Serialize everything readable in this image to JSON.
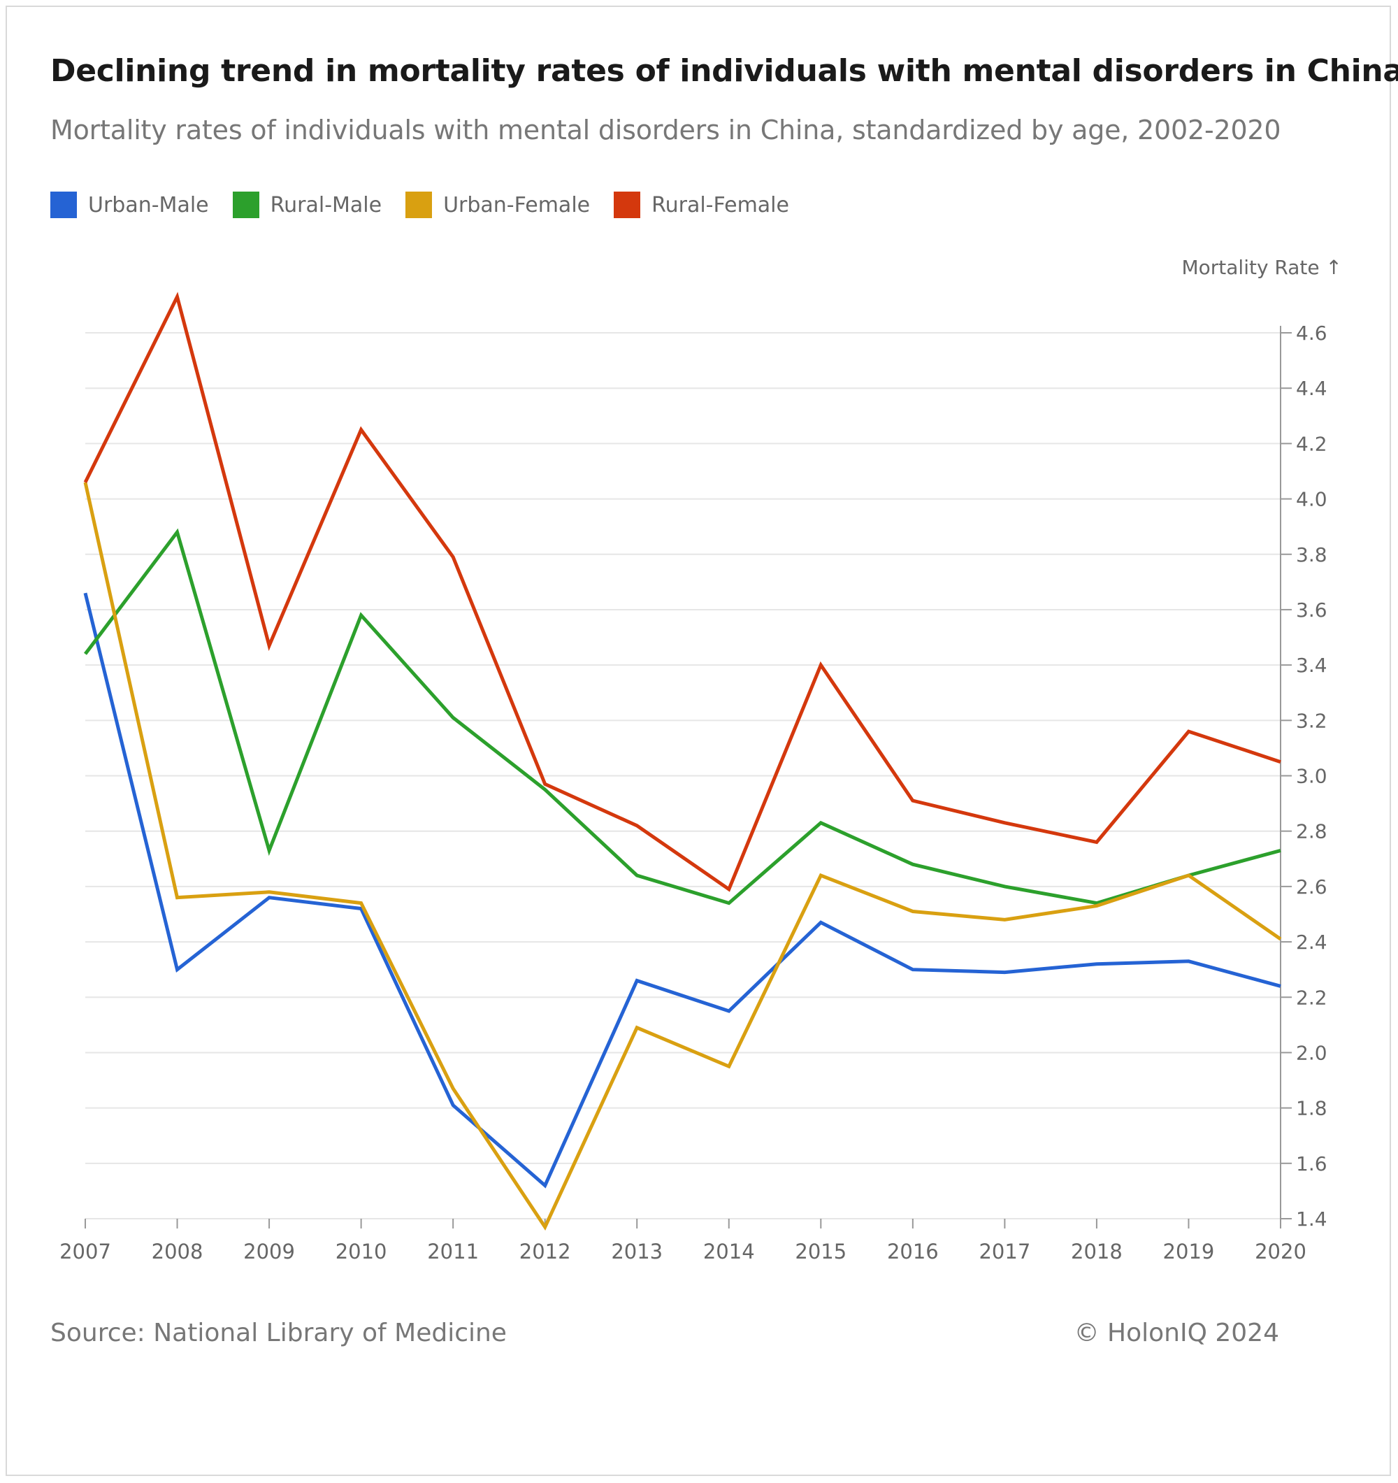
{
  "title": "Declining trend in mortality rates of individuals with mental disorders in China",
  "subtitle": "Mortality rates of individuals with mental disorders in China, standardized by age, 2002-2020",
  "source": "Source: National Library of Medicine",
  "credit": "© HolonIQ 2024",
  "chart_data": {
    "type": "line",
    "title": "Declining trend in mortality rates of individuals with mental disorders in China",
    "subtitle": "Mortality rates of individuals with mental disorders in China, standardized by age, 2002-2020",
    "xlabel": "",
    "ylabel": "Mortality Rate ↑",
    "x": [
      "2007",
      "2008",
      "2009",
      "2010",
      "2011",
      "2012",
      "2013",
      "2014",
      "2015",
      "2016",
      "2017",
      "2018",
      "2019",
      "2020"
    ],
    "ylim": [
      1.4,
      4.6
    ],
    "yticks": [
      "1.4",
      "1.6",
      "1.8",
      "2.0",
      "2.2",
      "2.4",
      "2.6",
      "2.8",
      "3.0",
      "3.2",
      "3.4",
      "3.6",
      "3.8",
      "4.0",
      "4.2",
      "4.4",
      "4.6"
    ],
    "grid": true,
    "legend_position": "top-left",
    "y_axis_side": "right",
    "series": [
      {
        "name": "Urban-Male",
        "color": "#2563d4",
        "values": [
          3.66,
          2.3,
          2.56,
          2.52,
          1.81,
          1.52,
          2.26,
          2.15,
          2.47,
          2.3,
          2.29,
          2.32,
          2.33,
          2.24
        ]
      },
      {
        "name": "Rural-Male",
        "color": "#2ca02c",
        "values": [
          3.44,
          3.88,
          2.73,
          3.58,
          3.21,
          2.95,
          2.64,
          2.54,
          2.83,
          2.68,
          2.6,
          2.54,
          2.64,
          2.73
        ]
      },
      {
        "name": "Urban-Female",
        "color": "#d9a011",
        "values": [
          4.06,
          2.56,
          2.58,
          2.54,
          1.87,
          1.37,
          2.09,
          1.95,
          2.64,
          2.51,
          2.48,
          2.53,
          2.64,
          2.41
        ]
      },
      {
        "name": "Rural-Female",
        "color": "#d4380d",
        "values": [
          4.06,
          4.73,
          3.47,
          4.25,
          3.79,
          2.97,
          2.82,
          2.59,
          3.4,
          2.91,
          2.83,
          2.76,
          3.16,
          3.05
        ]
      }
    ]
  }
}
